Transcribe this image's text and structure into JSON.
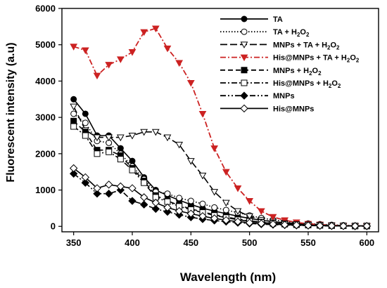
{
  "chart_data": {
    "type": "line",
    "xlabel": "Wavelength (nm)",
    "ylabel": "Fluorescent intensity  (a.u)",
    "xlim": [
      340,
      610
    ],
    "ylim": [
      -150,
      6000
    ],
    "xticks": [
      350,
      400,
      450,
      500,
      550,
      600
    ],
    "yticks": [
      0,
      1000,
      2000,
      3000,
      4000,
      5000,
      6000
    ],
    "legend_position": "top-right",
    "x": [
      350,
      360,
      370,
      380,
      390,
      400,
      410,
      420,
      430,
      440,
      450,
      460,
      470,
      480,
      490,
      500,
      510,
      520,
      530,
      540,
      550,
      560,
      570,
      580,
      590,
      600
    ],
    "series": [
      {
        "name": "TA",
        "color": "#000000",
        "dash": "solid",
        "marker": "circle-filled",
        "values": [
          3500,
          3100,
          2500,
          2500,
          2150,
          1800,
          1350,
          1000,
          850,
          720,
          600,
          500,
          420,
          350,
          280,
          220,
          170,
          130,
          100,
          80,
          60,
          40,
          30,
          20,
          10,
          10
        ]
      },
      {
        "name": "TA + H2O2",
        "color": "#000000",
        "dash": "dotted",
        "marker": "circle-open",
        "values": [
          3100,
          2850,
          2350,
          2300,
          2000,
          1650,
          1300,
          950,
          900,
          780,
          700,
          620,
          520,
          450,
          380,
          300,
          230,
          180,
          140,
          100,
          80,
          60,
          40,
          30,
          20,
          10
        ]
      },
      {
        "name": "MNPs + TA + H2O2",
        "color": "#000000",
        "dash": "longdash",
        "marker": "triangle-down-open",
        "values": [
          3300,
          2650,
          2450,
          2450,
          2450,
          2500,
          2600,
          2600,
          2450,
          2250,
          1800,
          1400,
          950,
          650,
          420,
          280,
          180,
          130,
          90,
          60,
          40,
          30,
          20,
          15,
          10,
          10
        ]
      },
      {
        "name": "His@MNPs + TA + H2O2",
        "color": "#cc2222",
        "dash": "dashdot",
        "marker": "triangle-down-filled",
        "values": [
          4950,
          4850,
          4150,
          4450,
          4600,
          4800,
          5350,
          5450,
          4900,
          4500,
          3950,
          3100,
          2150,
          1500,
          1050,
          700,
          420,
          260,
          170,
          110,
          70,
          50,
          30,
          20,
          10,
          10
        ]
      },
      {
        "name": "MNPs + H2O2",
        "color": "#000000",
        "dash": "dashed",
        "marker": "square-filled",
        "values": [
          2900,
          2600,
          2100,
          2100,
          1950,
          1600,
          1250,
          850,
          700,
          580,
          480,
          400,
          320,
          260,
          200,
          150,
          120,
          90,
          70,
          50,
          40,
          30,
          20,
          15,
          10,
          10
        ]
      },
      {
        "name": "His@MNPs + H2O2",
        "color": "#000000",
        "dash": "dashdot",
        "marker": "square-open",
        "values": [
          2750,
          2500,
          2000,
          2050,
          1850,
          1550,
          1200,
          800,
          680,
          550,
          460,
          380,
          300,
          240,
          180,
          140,
          110,
          80,
          60,
          45,
          35,
          25,
          20,
          15,
          10,
          10
        ]
      },
      {
        "name": "MNPs",
        "color": "#000000",
        "dash": "dashdotdot",
        "marker": "diamond-filled",
        "values": [
          1450,
          1200,
          900,
          900,
          1000,
          700,
          600,
          480,
          400,
          320,
          250,
          200,
          160,
          130,
          100,
          80,
          60,
          45,
          35,
          25,
          20,
          15,
          10,
          10,
          5,
          5
        ]
      },
      {
        "name": "His@MNPs",
        "color": "#000000",
        "dash": "solid",
        "marker": "diamond-open",
        "values": [
          1600,
          1350,
          1050,
          1150,
          1100,
          1050,
          800,
          650,
          520,
          420,
          350,
          280,
          220,
          170,
          130,
          100,
          80,
          60,
          45,
          35,
          25,
          20,
          15,
          10,
          10,
          10
        ]
      }
    ]
  }
}
